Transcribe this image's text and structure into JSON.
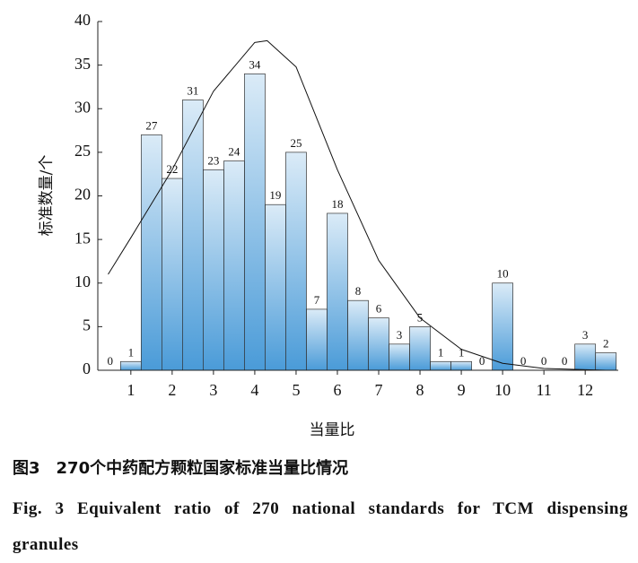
{
  "chart_data": {
    "type": "histogram",
    "xlabel": "当量比",
    "ylabel": "标准数量/个",
    "bins": [
      0.25,
      0.75,
      1.25,
      1.75,
      2.25,
      2.75,
      3.25,
      3.75,
      4.25,
      4.75,
      5.25,
      5.75,
      6.25,
      6.75,
      7.25,
      7.75,
      8.25,
      8.75,
      9.25,
      9.75,
      10.25,
      10.75,
      11.25,
      11.75,
      12.25,
      12.75
    ],
    "values": [
      0,
      1,
      27,
      22,
      31,
      23,
      24,
      34,
      19,
      25,
      7,
      18,
      8,
      6,
      3,
      5,
      1,
      1,
      0,
      10,
      0,
      0,
      0,
      3,
      2
    ],
    "color": "#4a9bd8",
    "curve": {
      "x": [
        0.45,
        1,
        2,
        3,
        4,
        4.3,
        5,
        6,
        7,
        8,
        9,
        10,
        11,
        12.5
      ],
      "values": [
        11,
        15.2,
        23,
        32,
        37.6,
        37.8,
        34.8,
        23,
        12.6,
        6,
        2.4,
        0.8,
        0.2,
        0
      ],
      "color": "#111111"
    },
    "xlim": [
      0.2,
      12.8
    ],
    "xticks": [
      1,
      2,
      3,
      4,
      5,
      6,
      7,
      8,
      9,
      10,
      11,
      12
    ],
    "ylim": [
      0,
      40
    ],
    "yticks": [
      0,
      5,
      10,
      15,
      20,
      25,
      30,
      35,
      40
    ]
  },
  "caption": {
    "cn": "图3　270个中药配方颗粒国家标准当量比情况",
    "en": "Fig. 3  Equivalent ratio of 270 national standards for TCM dispensing granules"
  }
}
